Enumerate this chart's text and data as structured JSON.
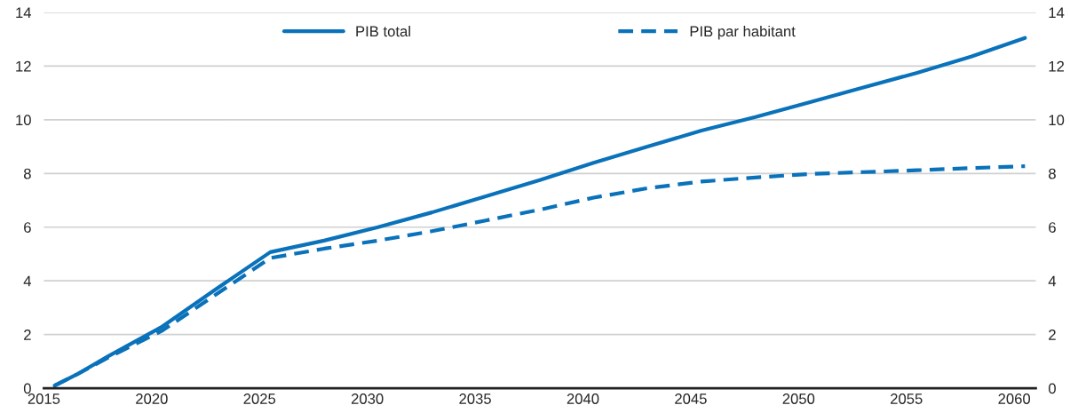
{
  "chart_data": {
    "type": "line",
    "series": [
      {
        "name": "PIB total",
        "color": "#0a72ba",
        "line_style": "solid",
        "x": [
          2015.5,
          2016.5,
          2018,
          2020.5,
          2023,
          2025.5,
          2028,
          2030.5,
          2033,
          2035.5,
          2038,
          2040.5,
          2043,
          2045.5,
          2048,
          2050.5,
          2053,
          2055.5,
          2058,
          2060.5
        ],
        "values": [
          0.1,
          0.5,
          1.2,
          2.3,
          3.7,
          5.07,
          5.5,
          6.0,
          6.55,
          7.15,
          7.75,
          8.4,
          9.0,
          9.6,
          10.1,
          10.65,
          11.2,
          11.75,
          12.35,
          13.05
        ]
      },
      {
        "name": "PIB par habitant",
        "color": "#0a72ba",
        "line_style": "dashed",
        "x": [
          2015.5,
          2016.5,
          2018,
          2020.5,
          2023,
          2025.5,
          2028,
          2030.5,
          2033,
          2035.5,
          2038,
          2040.5,
          2043,
          2045.5,
          2048,
          2050.5,
          2053,
          2055.5,
          2058,
          2060.5
        ],
        "values": [
          0.1,
          0.5,
          1.15,
          2.15,
          3.5,
          4.85,
          5.2,
          5.5,
          5.85,
          6.25,
          6.65,
          7.1,
          7.45,
          7.7,
          7.85,
          7.98,
          8.05,
          8.12,
          8.2,
          8.27
        ]
      }
    ],
    "xlim": [
      2015,
      2061
    ],
    "xticks": [
      2015,
      2020,
      2025,
      2030,
      2035,
      2040,
      2045,
      2050,
      2055,
      2060
    ],
    "ylim": [
      0,
      14
    ],
    "yticks": [
      0,
      2,
      4,
      6,
      8,
      10,
      12,
      14
    ],
    "y2lim": [
      0,
      14
    ],
    "y2ticks": [
      0,
      2,
      4,
      6,
      8,
      10,
      12,
      14
    ],
    "grid": "y",
    "legend": "top"
  }
}
